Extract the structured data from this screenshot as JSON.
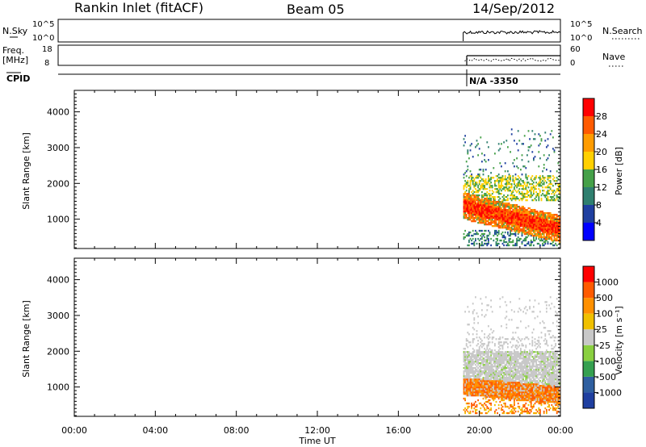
{
  "header": {
    "station": "Rankin Inlet (fitACF)",
    "beam": "Beam 05",
    "date": "14/Sep/2012"
  },
  "strips": {
    "nsky": {
      "label": "N.Sky",
      "ticks": [
        "10^5",
        "10^0"
      ]
    },
    "nsearch": {
      "label": "N.Search",
      "ticks": [
        "10^5",
        "10^0"
      ]
    },
    "freq": {
      "label": "Freq.",
      "unit": "[MHz]",
      "ticks": [
        "18",
        "8"
      ]
    },
    "nave": {
      "label": "Nave",
      "ticks": [
        "60",
        "0"
      ]
    },
    "cpid": {
      "label": "CPID",
      "value": "N/A  -3350"
    }
  },
  "colors": {
    "power": [
      "#0000ff",
      "#1f3fa0",
      "#2f7f6f",
      "#45a048",
      "#ffd000",
      "#ff9c00",
      "#ff5a00",
      "#ff0000"
    ],
    "velocity": [
      "#1f3fa0",
      "#2f5fa0",
      "#35a050",
      "#8ad040",
      "#c8c8c8",
      "#f0c000",
      "#ff9000",
      "#ff5a00",
      "#ff0000"
    ]
  },
  "chart_data": [
    {
      "type": "heatmap",
      "title": "Power",
      "ylabel": "Slant Range [km]",
      "xlabel": "Time UT",
      "x_ticks": [
        "00:00",
        "04:00",
        "08:00",
        "12:00",
        "16:00",
        "20:00",
        "00:00"
      ],
      "x_range_hours": [
        0,
        24
      ],
      "y_ticks": [
        1000,
        2000,
        3000,
        4000
      ],
      "ylim": [
        180,
        4600
      ],
      "colorbar": {
        "label": "Power [dB]",
        "ticks": [
          4,
          8,
          12,
          16,
          20,
          24,
          28
        ],
        "range": [
          0,
          32
        ]
      },
      "data_start_hour": 19.2
    },
    {
      "type": "heatmap",
      "title": "Velocity",
      "ylabel": "Slant Range [km]",
      "xlabel": "Time UT",
      "x_ticks": [
        "00:00",
        "04:00",
        "08:00",
        "12:00",
        "16:00",
        "20:00",
        "00:00"
      ],
      "x_range_hours": [
        0,
        24
      ],
      "y_ticks": [
        1000,
        2000,
        3000,
        4000
      ],
      "ylim": [
        180,
        4600
      ],
      "colorbar": {
        "label": "Velocity [m s⁻¹]",
        "ticks": [
          1000,
          500,
          100,
          25,
          -25,
          -100,
          -500,
          -1000
        ]
      },
      "data_start_hour": 19.2
    }
  ],
  "xaxis": {
    "label": "Time UT"
  }
}
